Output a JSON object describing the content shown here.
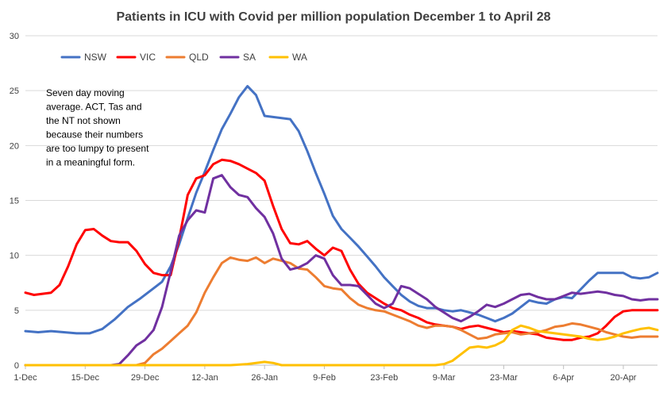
{
  "chart_data": {
    "type": "line",
    "title": "Patients in ICU with Covid per million population December 1  to April 28",
    "annotation": [
      "Seven day moving",
      "average. ACT, Tas and",
      "the NT not shown",
      "because their numbers",
      "are too lumpy to present",
      "in a meaningful form."
    ],
    "xlabel": "",
    "ylabel": "",
    "ylim": [
      0,
      30
    ],
    "y_ticks": [
      0,
      5,
      10,
      15,
      20,
      25,
      30
    ],
    "x_range_days": [
      0,
      148
    ],
    "x_ticks": [
      {
        "label": "1-Dec",
        "day": 0
      },
      {
        "label": "15-Dec",
        "day": 14
      },
      {
        "label": "29-Dec",
        "day": 28
      },
      {
        "label": "12-Jan",
        "day": 42
      },
      {
        "label": "26-Jan",
        "day": 56
      },
      {
        "label": "9-Feb",
        "day": 70
      },
      {
        "label": "23-Feb",
        "day": 84
      },
      {
        "label": "9-Mar",
        "day": 98
      },
      {
        "label": "23-Mar",
        "day": 112
      },
      {
        "label": "6-Apr",
        "day": 126
      },
      {
        "label": "20-Apr",
        "day": 140
      }
    ],
    "grid": "horizontal",
    "legend_position": "top-left",
    "series": [
      {
        "name": "NSW",
        "color": "#4472C4",
        "points": [
          [
            0,
            3.1
          ],
          [
            3,
            3.0
          ],
          [
            6,
            3.1
          ],
          [
            9,
            3.0
          ],
          [
            12,
            2.9
          ],
          [
            15,
            2.9
          ],
          [
            18,
            3.3
          ],
          [
            21,
            4.2
          ],
          [
            24,
            5.3
          ],
          [
            27,
            6.1
          ],
          [
            30,
            7.0
          ],
          [
            32,
            7.6
          ],
          [
            34,
            9.0
          ],
          [
            36,
            11.0
          ],
          [
            38,
            13.4
          ],
          [
            40,
            15.7
          ],
          [
            42,
            17.6
          ],
          [
            44,
            19.6
          ],
          [
            46,
            21.5
          ],
          [
            48,
            22.9
          ],
          [
            50,
            24.4
          ],
          [
            52,
            25.4
          ],
          [
            54,
            24.6
          ],
          [
            56,
            22.7
          ],
          [
            58,
            22.6
          ],
          [
            60,
            22.5
          ],
          [
            62,
            22.4
          ],
          [
            64,
            21.3
          ],
          [
            66,
            19.5
          ],
          [
            68,
            17.5
          ],
          [
            70,
            15.6
          ],
          [
            72,
            13.6
          ],
          [
            74,
            12.4
          ],
          [
            76,
            11.6
          ],
          [
            78,
            10.8
          ],
          [
            80,
            9.9
          ],
          [
            82,
            9.0
          ],
          [
            84,
            8.0
          ],
          [
            86,
            7.2
          ],
          [
            88,
            6.4
          ],
          [
            90,
            5.8
          ],
          [
            92,
            5.4
          ],
          [
            94,
            5.2
          ],
          [
            96,
            5.2
          ],
          [
            98,
            5.0
          ],
          [
            100,
            4.9
          ],
          [
            102,
            5.0
          ],
          [
            104,
            4.8
          ],
          [
            106,
            4.6
          ],
          [
            108,
            4.3
          ],
          [
            110,
            4.0
          ],
          [
            112,
            4.3
          ],
          [
            114,
            4.7
          ],
          [
            116,
            5.3
          ],
          [
            118,
            5.9
          ],
          [
            120,
            5.7
          ],
          [
            122,
            5.6
          ],
          [
            124,
            6.0
          ],
          [
            126,
            6.2
          ],
          [
            128,
            6.1
          ],
          [
            130,
            6.9
          ],
          [
            132,
            7.7
          ],
          [
            134,
            8.4
          ],
          [
            136,
            8.4
          ],
          [
            138,
            8.4
          ],
          [
            140,
            8.4
          ],
          [
            142,
            8.0
          ],
          [
            144,
            7.9
          ],
          [
            146,
            8.0
          ],
          [
            148,
            8.4
          ]
        ]
      },
      {
        "name": "VIC",
        "color": "#FF0000",
        "points": [
          [
            0,
            6.6
          ],
          [
            2,
            6.4
          ],
          [
            4,
            6.5
          ],
          [
            6,
            6.6
          ],
          [
            8,
            7.3
          ],
          [
            10,
            9.0
          ],
          [
            12,
            11.0
          ],
          [
            14,
            12.3
          ],
          [
            16,
            12.4
          ],
          [
            18,
            11.8
          ],
          [
            20,
            11.3
          ],
          [
            22,
            11.2
          ],
          [
            24,
            11.2
          ],
          [
            26,
            10.4
          ],
          [
            28,
            9.2
          ],
          [
            30,
            8.4
          ],
          [
            32,
            8.2
          ],
          [
            34,
            8.2
          ],
          [
            36,
            11.5
          ],
          [
            38,
            15.5
          ],
          [
            40,
            17.0
          ],
          [
            42,
            17.3
          ],
          [
            44,
            18.3
          ],
          [
            46,
            18.7
          ],
          [
            48,
            18.6
          ],
          [
            50,
            18.3
          ],
          [
            52,
            17.9
          ],
          [
            54,
            17.5
          ],
          [
            56,
            16.8
          ],
          [
            58,
            14.5
          ],
          [
            60,
            12.4
          ],
          [
            62,
            11.1
          ],
          [
            64,
            11.0
          ],
          [
            66,
            11.3
          ],
          [
            68,
            10.6
          ],
          [
            70,
            10.0
          ],
          [
            72,
            10.7
          ],
          [
            74,
            10.4
          ],
          [
            76,
            8.7
          ],
          [
            78,
            7.4
          ],
          [
            80,
            6.6
          ],
          [
            82,
            6.1
          ],
          [
            84,
            5.6
          ],
          [
            86,
            5.2
          ],
          [
            88,
            5.0
          ],
          [
            90,
            4.6
          ],
          [
            92,
            4.3
          ],
          [
            94,
            3.9
          ],
          [
            96,
            3.7
          ],
          [
            98,
            3.6
          ],
          [
            100,
            3.5
          ],
          [
            102,
            3.3
          ],
          [
            104,
            3.5
          ],
          [
            106,
            3.6
          ],
          [
            108,
            3.4
          ],
          [
            110,
            3.2
          ],
          [
            112,
            3.0
          ],
          [
            114,
            3.1
          ],
          [
            116,
            3.0
          ],
          [
            118,
            2.9
          ],
          [
            120,
            2.8
          ],
          [
            122,
            2.5
          ],
          [
            124,
            2.4
          ],
          [
            126,
            2.3
          ],
          [
            128,
            2.3
          ],
          [
            130,
            2.5
          ],
          [
            132,
            2.6
          ],
          [
            134,
            2.9
          ],
          [
            136,
            3.6
          ],
          [
            138,
            4.4
          ],
          [
            140,
            4.9
          ],
          [
            142,
            5.0
          ],
          [
            144,
            5.0
          ],
          [
            146,
            5.0
          ],
          [
            148,
            5.0
          ]
        ]
      },
      {
        "name": "QLD",
        "color": "#ED7D31",
        "points": [
          [
            0,
            0
          ],
          [
            26,
            0
          ],
          [
            28,
            0.2
          ],
          [
            30,
            1.0
          ],
          [
            32,
            1.5
          ],
          [
            34,
            2.2
          ],
          [
            36,
            2.9
          ],
          [
            38,
            3.6
          ],
          [
            40,
            4.8
          ],
          [
            42,
            6.6
          ],
          [
            44,
            8.0
          ],
          [
            46,
            9.3
          ],
          [
            48,
            9.8
          ],
          [
            50,
            9.6
          ],
          [
            52,
            9.5
          ],
          [
            54,
            9.8
          ],
          [
            56,
            9.3
          ],
          [
            58,
            9.7
          ],
          [
            60,
            9.5
          ],
          [
            62,
            9.3
          ],
          [
            64,
            8.8
          ],
          [
            66,
            8.7
          ],
          [
            68,
            8.0
          ],
          [
            70,
            7.2
          ],
          [
            72,
            7.0
          ],
          [
            74,
            6.9
          ],
          [
            76,
            6.1
          ],
          [
            78,
            5.5
          ],
          [
            80,
            5.2
          ],
          [
            82,
            5.0
          ],
          [
            84,
            4.9
          ],
          [
            86,
            4.6
          ],
          [
            88,
            4.3
          ],
          [
            90,
            4.0
          ],
          [
            92,
            3.6
          ],
          [
            94,
            3.4
          ],
          [
            96,
            3.6
          ],
          [
            98,
            3.6
          ],
          [
            100,
            3.5
          ],
          [
            102,
            3.2
          ],
          [
            104,
            2.8
          ],
          [
            106,
            2.4
          ],
          [
            108,
            2.5
          ],
          [
            110,
            2.8
          ],
          [
            112,
            2.9
          ],
          [
            114,
            3.0
          ],
          [
            116,
            2.8
          ],
          [
            118,
            2.9
          ],
          [
            120,
            3.0
          ],
          [
            122,
            3.2
          ],
          [
            124,
            3.5
          ],
          [
            126,
            3.6
          ],
          [
            128,
            3.8
          ],
          [
            130,
            3.7
          ],
          [
            132,
            3.5
          ],
          [
            134,
            3.3
          ],
          [
            136,
            3.0
          ],
          [
            138,
            2.8
          ],
          [
            140,
            2.6
          ],
          [
            142,
            2.5
          ],
          [
            144,
            2.6
          ],
          [
            146,
            2.6
          ],
          [
            148,
            2.6
          ]
        ]
      },
      {
        "name": "SA",
        "color": "#7030A0",
        "points": [
          [
            0,
            0
          ],
          [
            20,
            0
          ],
          [
            22,
            0.1
          ],
          [
            24,
            0.9
          ],
          [
            26,
            1.8
          ],
          [
            28,
            2.3
          ],
          [
            30,
            3.2
          ],
          [
            32,
            5.3
          ],
          [
            34,
            8.5
          ],
          [
            36,
            11.8
          ],
          [
            38,
            13.2
          ],
          [
            40,
            14.1
          ],
          [
            42,
            13.9
          ],
          [
            44,
            17.0
          ],
          [
            46,
            17.3
          ],
          [
            48,
            16.2
          ],
          [
            50,
            15.5
          ],
          [
            52,
            15.3
          ],
          [
            54,
            14.3
          ],
          [
            56,
            13.5
          ],
          [
            58,
            12.0
          ],
          [
            60,
            9.7
          ],
          [
            62,
            8.7
          ],
          [
            64,
            8.9
          ],
          [
            66,
            9.3
          ],
          [
            68,
            10.0
          ],
          [
            70,
            9.7
          ],
          [
            72,
            8.2
          ],
          [
            74,
            7.3
          ],
          [
            76,
            7.3
          ],
          [
            78,
            7.2
          ],
          [
            80,
            6.4
          ],
          [
            82,
            5.6
          ],
          [
            84,
            5.2
          ],
          [
            86,
            5.6
          ],
          [
            88,
            7.2
          ],
          [
            90,
            7.0
          ],
          [
            92,
            6.5
          ],
          [
            94,
            6.0
          ],
          [
            96,
            5.3
          ],
          [
            98,
            4.8
          ],
          [
            100,
            4.3
          ],
          [
            102,
            4.0
          ],
          [
            104,
            4.4
          ],
          [
            106,
            4.9
          ],
          [
            108,
            5.5
          ],
          [
            110,
            5.3
          ],
          [
            112,
            5.6
          ],
          [
            114,
            6.0
          ],
          [
            116,
            6.4
          ],
          [
            118,
            6.5
          ],
          [
            120,
            6.2
          ],
          [
            122,
            6.0
          ],
          [
            124,
            6.0
          ],
          [
            126,
            6.3
          ],
          [
            128,
            6.6
          ],
          [
            130,
            6.5
          ],
          [
            132,
            6.6
          ],
          [
            134,
            6.7
          ],
          [
            136,
            6.6
          ],
          [
            138,
            6.4
          ],
          [
            140,
            6.3
          ],
          [
            142,
            6.0
          ],
          [
            144,
            5.9
          ],
          [
            146,
            6.0
          ],
          [
            148,
            6.0
          ]
        ]
      },
      {
        "name": "WA",
        "color": "#FFC000",
        "points": [
          [
            0,
            0
          ],
          [
            48,
            0
          ],
          [
            52,
            0.1
          ],
          [
            56,
            0.3
          ],
          [
            58,
            0.2
          ],
          [
            60,
            0
          ],
          [
            96,
            0
          ],
          [
            98,
            0.1
          ],
          [
            100,
            0.4
          ],
          [
            102,
            1.0
          ],
          [
            104,
            1.6
          ],
          [
            106,
            1.7
          ],
          [
            108,
            1.6
          ],
          [
            110,
            1.8
          ],
          [
            112,
            2.2
          ],
          [
            114,
            3.2
          ],
          [
            116,
            3.6
          ],
          [
            118,
            3.4
          ],
          [
            120,
            3.1
          ],
          [
            122,
            3.0
          ],
          [
            124,
            2.9
          ],
          [
            126,
            2.8
          ],
          [
            128,
            2.7
          ],
          [
            130,
            2.6
          ],
          [
            132,
            2.4
          ],
          [
            134,
            2.3
          ],
          [
            136,
            2.4
          ],
          [
            138,
            2.6
          ],
          [
            140,
            2.9
          ],
          [
            142,
            3.1
          ],
          [
            144,
            3.3
          ],
          [
            146,
            3.4
          ],
          [
            148,
            3.2
          ]
        ]
      }
    ]
  }
}
